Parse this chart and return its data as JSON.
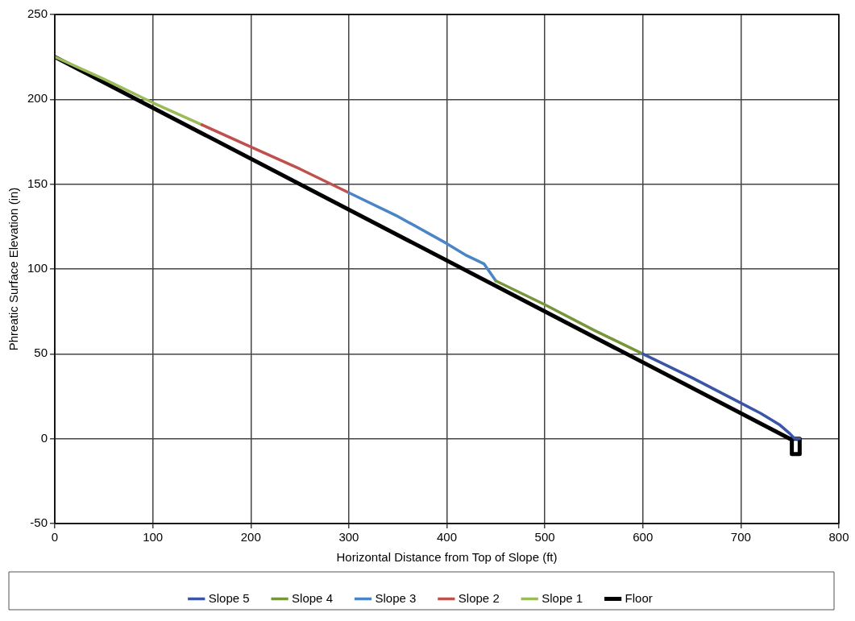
{
  "chart_data": {
    "type": "line",
    "xlabel": "Horizontal Distance from Top of Slope (ft)",
    "ylabel": "Phreatic Surface Elevation (in)",
    "xlim": [
      0,
      800
    ],
    "xticks": [
      0,
      100,
      200,
      300,
      400,
      500,
      600,
      700,
      800
    ],
    "ylim": [
      -50,
      250
    ],
    "yticks": [
      -50,
      0,
      50,
      100,
      150,
      200,
      250
    ],
    "grid": true,
    "legend": "bottom",
    "marker": "none",
    "line_style": "solid",
    "series": [
      {
        "name": "Slope 5",
        "color": "#3a55a8",
        "x": [
          600,
          650,
          700,
          720,
          740,
          750,
          755,
          760
        ],
        "values": [
          50,
          36,
          21,
          15,
          8,
          3,
          0,
          0
        ]
      },
      {
        "name": "Slope 4",
        "color": "#77963c",
        "x": [
          450,
          500,
          550,
          600
        ],
        "values": [
          93,
          79,
          64,
          50
        ]
      },
      {
        "name": "Slope 3",
        "color": "#4a86c6",
        "x": [
          300,
          350,
          400,
          420,
          438,
          450
        ],
        "values": [
          145,
          131,
          115,
          108,
          103,
          93
        ]
      },
      {
        "name": "Slope 2",
        "color": "#c0504d",
        "x": [
          150,
          200,
          250,
          300
        ],
        "values": [
          185,
          172,
          159,
          145
        ]
      },
      {
        "name": "Slope 1",
        "color": "#9bbb59",
        "x": [
          0,
          50,
          100,
          150
        ],
        "values": [
          225,
          212,
          198,
          185
        ]
      },
      {
        "name": "Floor",
        "color": "#000000",
        "x": [
          0,
          750,
          752,
          752,
          760,
          760,
          752
        ],
        "values": [
          225,
          0,
          0,
          -9,
          -9,
          0,
          0
        ]
      }
    ]
  }
}
